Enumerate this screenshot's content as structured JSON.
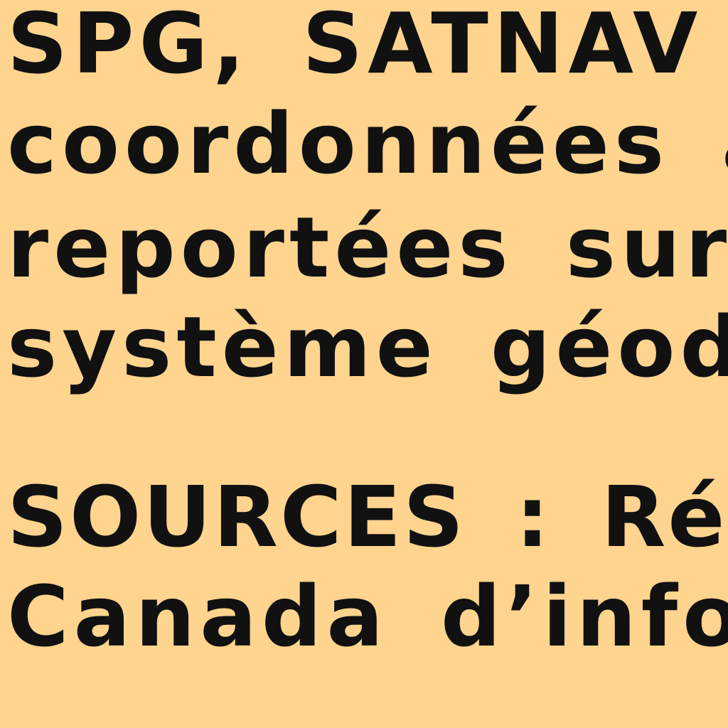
{
  "document": {
    "background_color": "#FFD48F",
    "text_color": "#111111",
    "paragraph_1": [
      "SPG, SATNAV o",
      "coordonnées aprè",
      "reportées sur c",
      "système géodés"
    ],
    "paragraph_2": [
      "SOURCES : Rédigé",
      "Canada d’informa"
    ]
  }
}
